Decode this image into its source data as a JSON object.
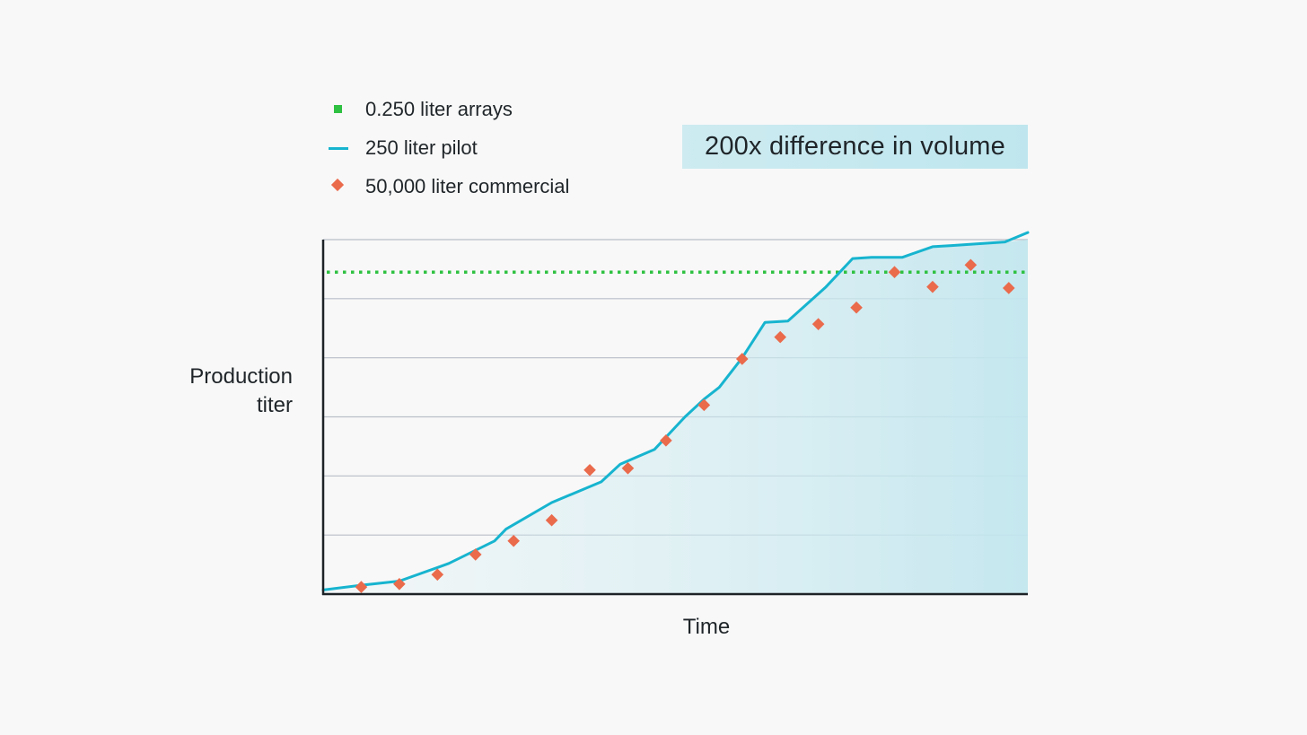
{
  "chart_data": {
    "type": "line",
    "title": "",
    "xlabel": "Time",
    "ylabel_lines": [
      "Production",
      "titer"
    ],
    "annotation": "200x difference in volume",
    "xlim": [
      0,
      18.5
    ],
    "ylim": [
      0,
      6
    ],
    "grid": true,
    "legend_position": "top-left",
    "series": [
      {
        "name": "0.250 liter arrays",
        "kind": "dotted-reference",
        "color": "#2fc142",
        "y": 5.45
      },
      {
        "name": "250 liter pilot",
        "kind": "line",
        "color": "#17b4cf",
        "x": [
          0,
          1,
          2,
          3,
          3.3,
          4.5,
          4.8,
          6,
          7.3,
          7.8,
          8.7,
          9.5,
          10,
          10.4,
          11,
          11.6,
          12.2,
          13.2,
          13.9,
          14.4,
          15.2,
          16,
          16.5,
          17.9,
          18.5
        ],
        "values": [
          0.07,
          0.15,
          0.22,
          0.45,
          0.52,
          0.9,
          1.1,
          1.55,
          1.9,
          2.2,
          2.45,
          3.0,
          3.3,
          3.5,
          4.0,
          4.6,
          4.62,
          5.2,
          5.68,
          5.7,
          5.7,
          5.88,
          5.9,
          5.96,
          6.12
        ]
      },
      {
        "name": "50,000 liter commercial",
        "kind": "scatter",
        "color": "#ea6a4c",
        "x": [
          1,
          2,
          3,
          4,
          5,
          6,
          7,
          8,
          9,
          10,
          11,
          12,
          13,
          14,
          15,
          16,
          17,
          18
        ],
        "values": [
          0.12,
          0.17,
          0.33,
          0.67,
          0.9,
          1.25,
          2.1,
          2.13,
          2.6,
          3.2,
          3.98,
          4.35,
          4.57,
          4.85,
          5.45,
          5.2,
          5.57,
          5.18
        ]
      }
    ]
  }
}
